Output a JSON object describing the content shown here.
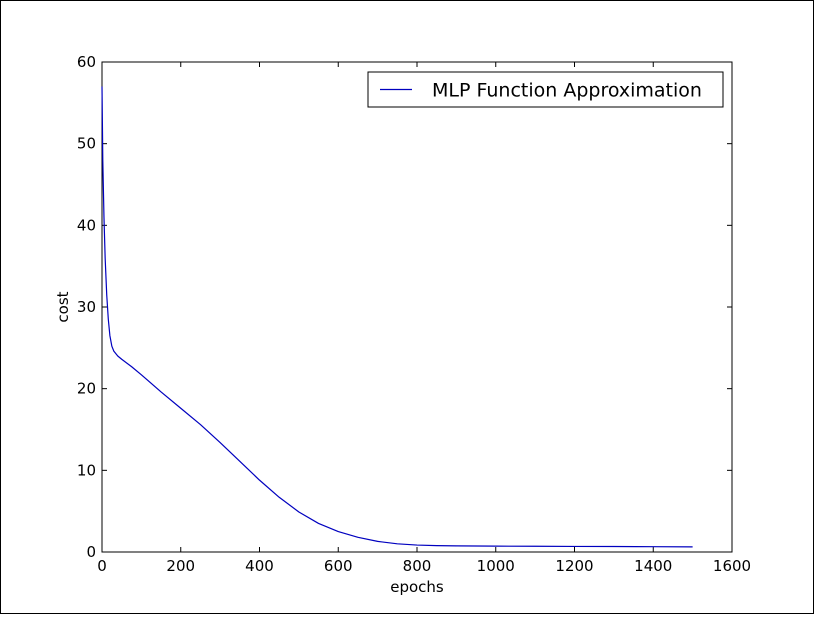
{
  "chart_data": {
    "type": "line",
    "title": "",
    "xlabel": "epochs",
    "ylabel": "cost",
    "xlim": [
      0,
      1600
    ],
    "ylim": [
      0,
      60
    ],
    "xticks": [
      0,
      200,
      400,
      600,
      800,
      1000,
      1200,
      1400,
      1600
    ],
    "yticks": [
      0,
      10,
      20,
      30,
      40,
      50,
      60
    ],
    "xtick_labels": [
      "0",
      "200",
      "400",
      "600",
      "800",
      "1000",
      "1200",
      "1400",
      "1600"
    ],
    "ytick_labels": [
      "0",
      "10",
      "20",
      "30",
      "40",
      "50",
      "60"
    ],
    "grid": false,
    "legend": {
      "placement": "top-right",
      "entries": [
        "MLP Function Approximation"
      ]
    },
    "series": [
      {
        "name": "MLP Function Approximation",
        "color": "#0000bf",
        "x": [
          0,
          2,
          5,
          8,
          12,
          16,
          20,
          25,
          30,
          40,
          50,
          75,
          100,
          150,
          200,
          250,
          300,
          350,
          400,
          450,
          500,
          550,
          600,
          650,
          700,
          750,
          800,
          850,
          900,
          1000,
          1100,
          1200,
          1300,
          1400,
          1500
        ],
        "y": [
          57,
          48,
          41,
          36,
          31.5,
          28.5,
          26.5,
          25.2,
          24.6,
          24,
          23.6,
          22.7,
          21.7,
          19.6,
          17.6,
          15.6,
          13.4,
          11.1,
          8.8,
          6.7,
          4.9,
          3.5,
          2.5,
          1.8,
          1.3,
          1.0,
          0.85,
          0.78,
          0.75,
          0.72,
          0.7,
          0.68,
          0.67,
          0.65,
          0.63
        ]
      }
    ]
  }
}
